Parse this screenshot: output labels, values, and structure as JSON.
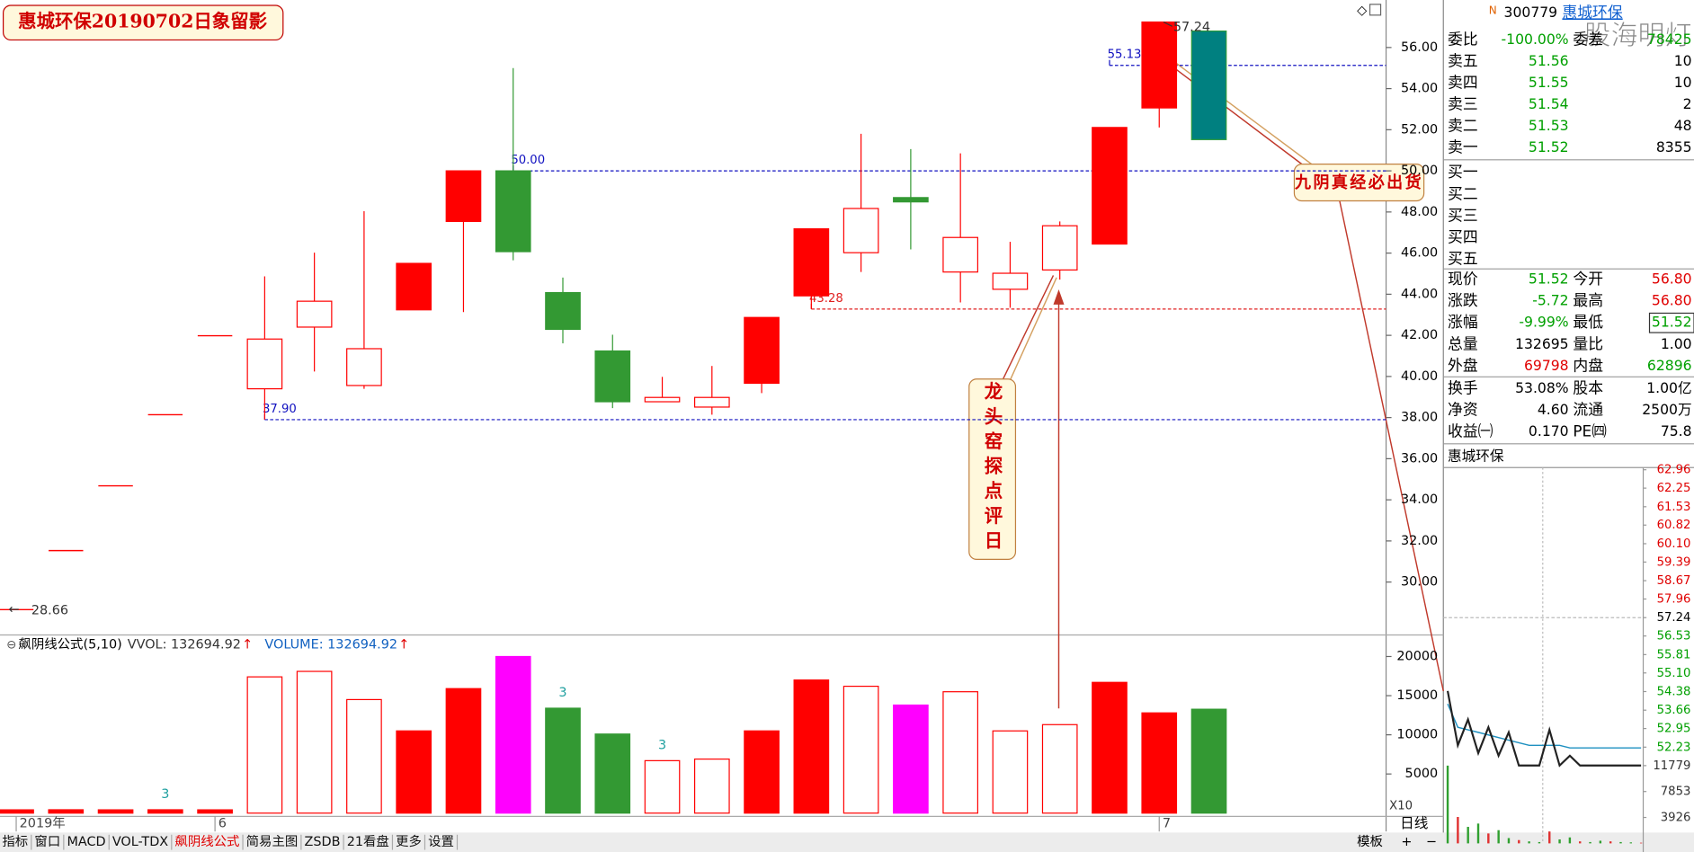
{
  "header": {
    "title": "惠城环保20190702日象留影"
  },
  "main_chart": {
    "categories": [
      "2019年",
      null,
      null,
      null,
      "6",
      null,
      null,
      null,
      null,
      null,
      null,
      null,
      null,
      null,
      null,
      null,
      null,
      null,
      null,
      null,
      null,
      null,
      null,
      "7",
      null
    ],
    "candles": [
      {
        "style": "line",
        "price": 28.66
      },
      {
        "style": "line",
        "price": 31.53
      },
      {
        "style": "line",
        "price": 34.68
      },
      {
        "style": "line",
        "price": 38.14
      },
      {
        "style": "line",
        "price": 41.98
      },
      {
        "style": "hollow",
        "open": 39.4,
        "high": 44.87,
        "low": 37.9,
        "close": 41.82
      },
      {
        "style": "hollow",
        "open": 42.4,
        "high": 46.02,
        "low": 40.24,
        "close": 43.66
      },
      {
        "style": "hollow",
        "open": 39.56,
        "high": 48.04,
        "low": 39.4,
        "close": 41.35
      },
      {
        "style": "red",
        "open": 43.24,
        "high": 45.5,
        "low": 43.24,
        "close": 45.5
      },
      {
        "style": "red",
        "open": 47.54,
        "high": 50.0,
        "low": 43.13,
        "close": 50.0
      },
      {
        "style": "green",
        "open": 50.0,
        "high": 55.0,
        "low": 45.65,
        "close": 46.07
      },
      {
        "style": "green",
        "open": 44.08,
        "high": 44.81,
        "low": 41.61,
        "close": 42.29
      },
      {
        "style": "green",
        "open": 41.24,
        "high": 42.03,
        "low": 38.46,
        "close": 38.77
      },
      {
        "style": "hollow",
        "open": 38.77,
        "high": 39.98,
        "low": 38.77,
        "close": 38.98
      },
      {
        "style": "hollow",
        "open": 38.51,
        "high": 40.51,
        "low": 38.14,
        "close": 38.98
      },
      {
        "style": "red",
        "open": 39.67,
        "high": 42.87,
        "low": 39.19,
        "close": 42.87
      },
      {
        "style": "red",
        "open": 43.92,
        "high": 47.18,
        "low": 43.28,
        "close": 47.18
      },
      {
        "style": "hollow",
        "open": 46.02,
        "high": 51.8,
        "low": 45.08,
        "close": 48.17
      },
      {
        "style": "green",
        "open": 48.7,
        "high": 51.06,
        "low": 46.18,
        "close": 48.49
      },
      {
        "style": "hollow",
        "open": 45.08,
        "high": 50.85,
        "low": 43.6,
        "close": 46.76
      },
      {
        "style": "hollow",
        "open": 44.24,
        "high": 46.55,
        "low": 43.34,
        "close": 45.02
      },
      {
        "style": "hollow",
        "open": 45.18,
        "high": 47.54,
        "low": 44.71,
        "close": 47.33
      },
      {
        "style": "red",
        "open": 46.44,
        "high": 52.11,
        "low": 46.44,
        "close": 52.11
      },
      {
        "style": "red",
        "open": 53.06,
        "high": 57.24,
        "low": 52.11,
        "close": 57.24
      },
      {
        "style": "teal",
        "open": 56.8,
        "high": 56.8,
        "low": 51.52,
        "close": 51.52
      }
    ],
    "styles": {
      "line": {
        "fill": "#ff0000",
        "stroke": "#ff0000"
      },
      "hollow": {
        "fill": "#ffffff",
        "stroke": "#ff0000"
      },
      "red": {
        "fill": "#ff0000",
        "stroke": "#ff0000"
      },
      "green": {
        "fill": "#339933",
        "stroke": "#339933"
      },
      "teal": {
        "fill": "#008080",
        "stroke": "#2a9a3a"
      },
      "magenta": {
        "fill": "#ff00ff",
        "stroke": "#ff00ff"
      }
    },
    "price_ylim": [
      27.48,
      58.31
    ],
    "price_ticks": [
      {
        "value": 56,
        "label": "56.00"
      },
      {
        "value": 54,
        "label": "54.00"
      },
      {
        "value": 52,
        "label": "52.00"
      },
      {
        "value": 50,
        "label": "50.00"
      },
      {
        "value": 48,
        "label": "48.00"
      },
      {
        "value": 46,
        "label": "46.00"
      },
      {
        "value": 44,
        "label": "44.00"
      },
      {
        "value": 42,
        "label": "42.00"
      },
      {
        "value": 40,
        "label": "40.00"
      },
      {
        "value": 38,
        "label": "38.00"
      },
      {
        "value": 36,
        "label": "36.00"
      },
      {
        "value": 34,
        "label": "34.00"
      },
      {
        "value": 32,
        "label": "32.00"
      },
      {
        "value": 30,
        "label": "30.00"
      }
    ],
    "reference_lines": [
      {
        "value": 37.9,
        "label": "37.90",
        "color": "#1010c0",
        "anchor_candle": 5
      },
      {
        "value": 50,
        "label": "50.00",
        "color": "#1010c0",
        "anchor_candle": 10
      },
      {
        "value": 43.28,
        "label": "43.28",
        "color": "#e02020",
        "anchor_candle": 16
      },
      {
        "value": 55.13,
        "label": "55.13",
        "color": "#1010c0",
        "anchor_candle": 22
      }
    ],
    "high_label": {
      "value": 57.24,
      "label": "57.24"
    },
    "low_label": {
      "value": 28.66,
      "label": "28.66"
    },
    "callouts": [
      "九阴真经必出货",
      "龙头窑探点评日"
    ]
  },
  "volume_chart": {
    "indicator": "飙阴线公式(5,10)",
    "series": [
      {
        "label": "VVOL: 132694.92",
        "arrow": "↑"
      },
      {
        "label": "VOLUME: 132694.92",
        "arrow": "↑"
      }
    ],
    "values": [
      420,
      430,
      420,
      430,
      420,
      17400,
      18100,
      14500,
      10500,
      15900,
      20000,
      13400,
      10100,
      6700,
      6900,
      10500,
      17000,
      16200,
      13800,
      15500,
      10500,
      11300,
      16700,
      12800,
      13269
    ],
    "styles": [
      "red",
      "red",
      "red",
      "red",
      "red",
      "hollow",
      "hollow",
      "hollow",
      "red",
      "red",
      "magenta",
      "green",
      "green",
      "hollow",
      "hollow",
      "red",
      "red",
      "hollow",
      "magenta",
      "hollow",
      "hollow",
      "hollow",
      "red",
      "red",
      "green"
    ],
    "value_notes": [
      null,
      null,
      null,
      "3",
      null,
      null,
      null,
      null,
      null,
      null,
      null,
      "3",
      null,
      "3",
      null,
      null,
      null,
      null,
      null,
      null,
      null,
      null,
      null,
      null,
      null
    ],
    "ylim": [
      0,
      22477
    ],
    "yticks": [
      20000,
      15000,
      10000,
      5000
    ],
    "scale_note": "X10",
    "period": "日线"
  },
  "tabs": [
    "指标",
    "窗口",
    "MACD",
    "VOL-TDX",
    "飙阴线公式",
    "简易主图",
    "ZSDB",
    "21看盘",
    "更多",
    "设置"
  ],
  "tabs_right": [
    "模板",
    "+",
    "−"
  ],
  "quote": {
    "flag": "N",
    "code": "300779",
    "name": "惠城环保",
    "watermark": "股海明灯",
    "order_ratio": [
      "委比",
      "-100.00%",
      "委差",
      "78425"
    ],
    "asks": [
      [
        "卖五",
        "51.56",
        "10"
      ],
      [
        "卖四",
        "51.55",
        "10"
      ],
      [
        "卖三",
        "51.54",
        "2"
      ],
      [
        "卖二",
        "51.53",
        "48"
      ],
      [
        "卖一",
        "51.52",
        "8355"
      ]
    ],
    "bids": [
      "买一",
      "买二",
      "买三",
      "买四",
      "买五"
    ],
    "stats": [
      [
        "现价",
        "51.52",
        "今开",
        "56.80"
      ],
      [
        "涨跌",
        "-5.72",
        "最高",
        "56.80"
      ],
      [
        "涨幅",
        "-9.99%",
        "最低",
        "51.52"
      ],
      [
        "总量",
        "132695",
        "量比",
        "1.00"
      ],
      [
        "外盘",
        "69798",
        "内盘",
        "62896"
      ],
      [
        "换手",
        "53.08%",
        "股本",
        "1.00亿"
      ],
      [
        "净资",
        "4.60",
        "流通",
        "2500万"
      ],
      [
        "收益㈠",
        "0.170",
        "PE㈣",
        "75.8"
      ]
    ]
  },
  "intraday": {
    "title": "惠城环保",
    "price_ylim": [
      51.39,
      63.17
    ],
    "price_ticks": [
      62.96,
      62.25,
      61.53,
      60.82,
      {
        "value": 60.1,
        "label": "60.10"
      },
      59.39,
      58.67,
      57.96,
      57.24,
      56.53,
      55.81,
      {
        "value": 55.1,
        "label": "55.10"
      },
      54.38,
      53.66,
      52.95,
      52.23
    ],
    "price": [
      54.4,
      52.3,
      53.3,
      52.0,
      53.0,
      51.9,
      52.8,
      51.52,
      51.52,
      51.52,
      52.9,
      51.52,
      51.9,
      51.52,
      51.52,
      51.52,
      51.52,
      51.52,
      51.52,
      51.52
    ],
    "avg": [
      53.9,
      53.0,
      52.9,
      52.8,
      52.7,
      52.6,
      52.5,
      52.4,
      52.3,
      52.3,
      52.3,
      52.3,
      52.2,
      52.2,
      52.2,
      52.2,
      52.2,
      52.2,
      52.2,
      52.2
    ],
    "volume_ylim": [
      0,
      12433
    ],
    "volume_ticks": [
      11779,
      7853,
      3926
    ],
    "volume": [
      11779,
      4000,
      2500,
      3000,
      1500,
      2000,
      800,
      500,
      300,
      200,
      1800,
      600,
      900,
      300,
      200,
      400,
      300,
      200,
      150,
      100
    ]
  }
}
